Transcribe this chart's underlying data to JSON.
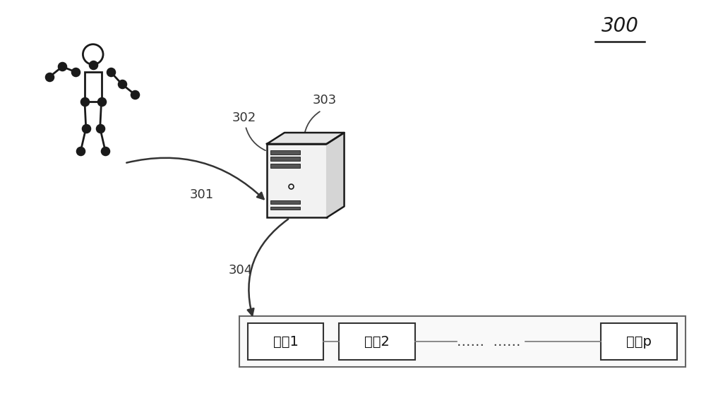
{
  "bg_color": "#ffffff",
  "figure_label": "300",
  "labels": {
    "lbl_301": "301",
    "lbl_302": "302",
    "lbl_303": "303",
    "lbl_304": "304"
  },
  "block_labels": [
    "区套1",
    "区套2",
    "……  ……",
    "区块p"
  ],
  "label_fontsize": 13,
  "block_fontsize": 14,
  "fig_label_fontsize": 20
}
